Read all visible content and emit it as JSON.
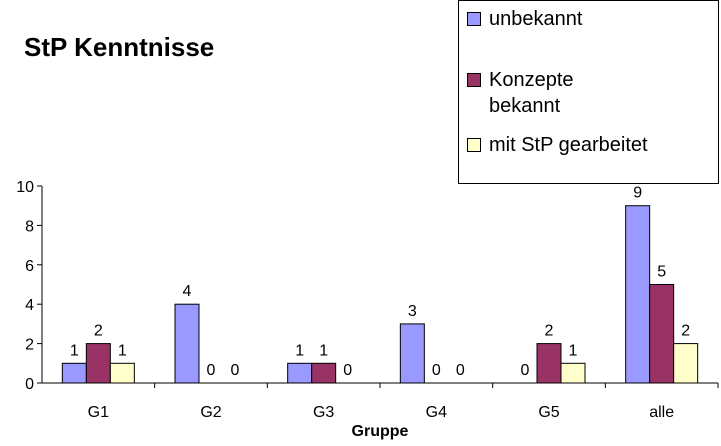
{
  "chart_data": {
    "type": "bar",
    "title": "StP Kenntnisse",
    "xlabel": "Gruppe",
    "ylabel": "",
    "ylim": [
      0,
      10
    ],
    "yticks": [
      0,
      2,
      4,
      6,
      8,
      10
    ],
    "categories": [
      "G1",
      "G2",
      "G3",
      "G4",
      "G5",
      "alle"
    ],
    "series": [
      {
        "name": "unbekannt",
        "values": [
          1,
          4,
          1,
          3,
          0,
          9
        ],
        "color": "#9999ff"
      },
      {
        "name": "Konzepte bekannt",
        "values": [
          2,
          0,
          1,
          0,
          2,
          5
        ],
        "color": "#993366"
      },
      {
        "name": "mit StP gearbeitet",
        "values": [
          1,
          0,
          0,
          0,
          1,
          2
        ],
        "color": "#ffffcc"
      }
    ],
    "grid": false,
    "legend_position": "top-right"
  }
}
